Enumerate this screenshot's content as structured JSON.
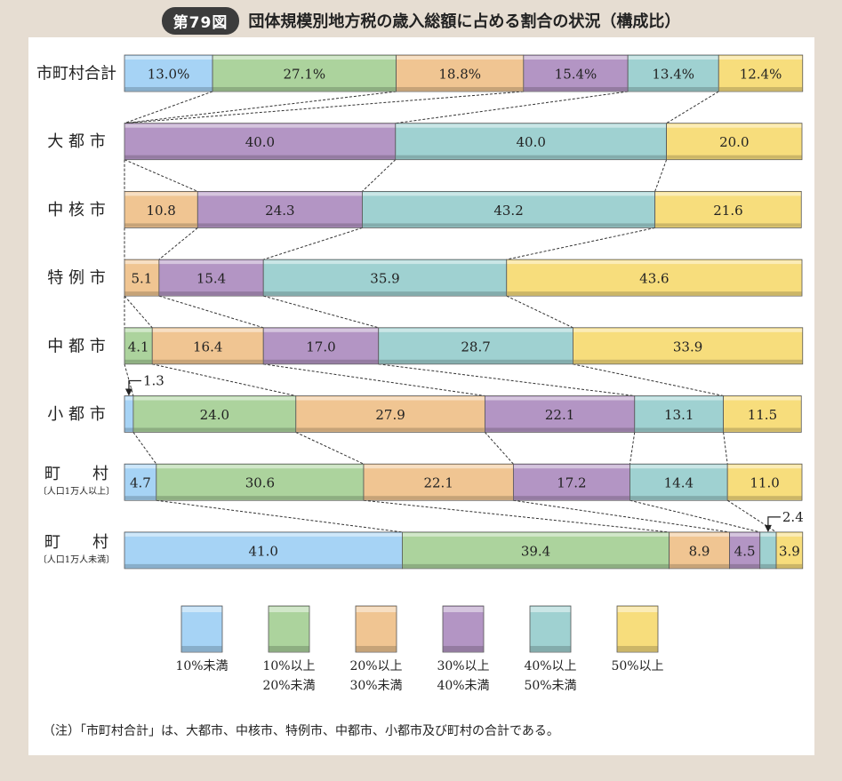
{
  "header": {
    "badge": "第79図",
    "title": "団体規模別地方税の歳入総額に占める割合の状況（構成比）"
  },
  "note": "（注）「市町村合計」は、大都市、中核市、特例市、中都市、小都市及び町村の合計である。",
  "chart_data": {
    "type": "bar",
    "orientation": "horizontal",
    "stacked": "percent",
    "xlim": [
      0,
      100
    ],
    "categories": [
      "市町村合計",
      "大 都 市",
      "中 核 市",
      "特 例 市",
      "中 都 市",
      "小 都 市",
      "町　　村",
      "町　　村"
    ],
    "category_subs": [
      "",
      "",
      "",
      "",
      "",
      "",
      "〔人口1万人以上〕",
      "〔人口1万人未満〕"
    ],
    "series": [
      {
        "name": "10%未満",
        "color": "#a6d3f5",
        "values": [
          13.0,
          0,
          0,
          0,
          0,
          1.3,
          4.7,
          41.0
        ]
      },
      {
        "name": "10%以上 20%未満",
        "color": "#acd39d",
        "values": [
          27.1,
          0,
          0,
          0,
          4.1,
          24.0,
          30.6,
          39.4
        ]
      },
      {
        "name": "20%以上 30%未満",
        "color": "#f0c592",
        "values": [
          18.8,
          0,
          10.8,
          5.1,
          16.4,
          27.9,
          22.1,
          8.9
        ]
      },
      {
        "name": "30%以上 40%未満",
        "color": "#b395c4",
        "values": [
          15.4,
          40.0,
          24.3,
          15.4,
          17.0,
          22.1,
          17.2,
          4.5
        ]
      },
      {
        "name": "40%以上 50%未満",
        "color": "#9fd1d1",
        "values": [
          13.4,
          40.0,
          43.2,
          35.9,
          28.7,
          13.1,
          14.4,
          2.4
        ]
      },
      {
        "name": "50%以上",
        "color": "#f7dd7c",
        "values": [
          12.4,
          20.0,
          21.6,
          43.6,
          33.9,
          11.5,
          11.0,
          3.9
        ]
      }
    ],
    "data_labels": [
      [
        "13.0%",
        "27.1%",
        "18.8%",
        "15.4%",
        "13.4%",
        "12.4%"
      ],
      [
        "",
        "",
        "",
        "40.0",
        "40.0",
        "20.0"
      ],
      [
        "",
        "",
        "10.8",
        "24.3",
        "43.2",
        "21.6"
      ],
      [
        "",
        "",
        "5.1",
        "15.4",
        "35.9",
        "43.6"
      ],
      [
        "",
        "4.1",
        "16.4",
        "17.0",
        "28.7",
        "33.9"
      ],
      [
        "",
        "24.0",
        "27.9",
        "22.1",
        "13.1",
        "11.5"
      ],
      [
        "4.7",
        "30.6",
        "22.1",
        "17.2",
        "14.4",
        "11.0"
      ],
      [
        "41.0",
        "39.4",
        "8.9",
        "4.5",
        "",
        "3.9"
      ]
    ],
    "callouts": [
      {
        "row": 5,
        "series": 0,
        "text": "1.3"
      },
      {
        "row": 7,
        "series": 4,
        "text": "2.4"
      }
    ],
    "legend": [
      {
        "line1": "10%未満",
        "line2": ""
      },
      {
        "line1": "10%以上",
        "line2": "20%未満"
      },
      {
        "line1": "20%以上",
        "line2": "30%未満"
      },
      {
        "line1": "30%以上",
        "line2": "40%未満"
      },
      {
        "line1": "40%以上",
        "line2": "50%未満"
      },
      {
        "line1": "50%以上",
        "line2": ""
      }
    ],
    "legend_position": "bottom",
    "connector_lines": true
  }
}
